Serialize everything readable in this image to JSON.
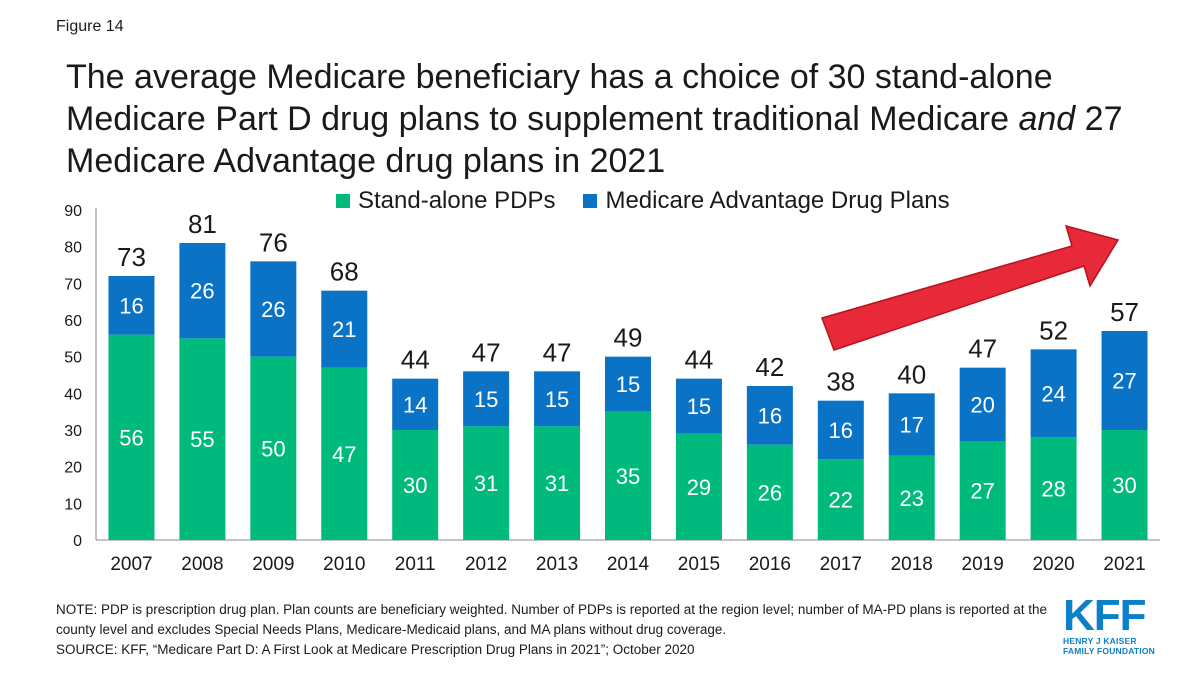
{
  "figure_label": "Figure 14",
  "title": {
    "part1": "The average Medicare beneficiary has a choice of 30 stand-alone Medicare Part D drug plans to supplement traditional Medicare ",
    "emphasis": "and",
    "part2": " 27 Medicare Advantage drug plans in 2021"
  },
  "chart_data": {
    "type": "bar",
    "stacked": true,
    "categories": [
      "2007",
      "2008",
      "2009",
      "2010",
      "2011",
      "2012",
      "2013",
      "2014",
      "2015",
      "2016",
      "2017",
      "2018",
      "2019",
      "2020",
      "2021"
    ],
    "series": [
      {
        "name": "Stand-alone PDPs",
        "color": "#00b97c",
        "values": [
          56,
          55,
          50,
          47,
          30,
          31,
          31,
          35,
          29,
          26,
          22,
          23,
          27,
          28,
          30
        ]
      },
      {
        "name": "Medicare Advantage Drug Plans",
        "color": "#0b73c6",
        "values": [
          16,
          26,
          26,
          21,
          14,
          15,
          15,
          15,
          15,
          16,
          16,
          17,
          20,
          24,
          27
        ]
      }
    ],
    "totals": [
      73,
      81,
      76,
      68,
      44,
      47,
      47,
      49,
      44,
      42,
      38,
      40,
      47,
      52,
      57
    ],
    "ylim": [
      0,
      90
    ],
    "yticks": [
      0,
      10,
      20,
      30,
      40,
      50,
      60,
      70,
      80,
      90
    ],
    "legend_position": "top-center",
    "annotation": "red upward trend arrow over 2017–2021",
    "annotation_color": "#e8293a"
  },
  "notes": {
    "note": "NOTE: PDP is prescription drug plan. Plan counts are beneficiary weighted. Number of PDPs is reported at the region level; number of MA-PD plans is reported at the county level and excludes Special Needs Plans, Medicare-Medicaid plans, and MA plans without drug coverage.",
    "source": "SOURCE: KFF, “Medicare Part D: A First Look at Medicare Prescription Drug Plans in 2021”; October 2020"
  },
  "logo": {
    "text": "KFF",
    "line1": "HENRY J KAISER",
    "line2": "FAMILY FOUNDATION",
    "color": "#0b7fc8"
  }
}
